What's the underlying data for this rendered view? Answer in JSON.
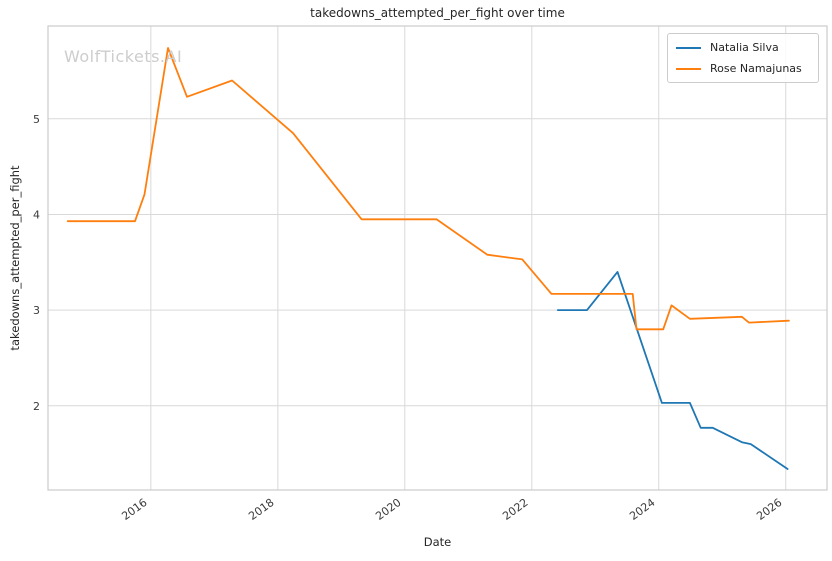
{
  "watermark": "WolfTickets.AI",
  "chart_data": {
    "type": "line",
    "title": "takedowns_attempted_per_fight over time",
    "xlabel": "Date",
    "ylabel": "takedowns_attempted_per_fight",
    "x_ticks": [
      2016,
      2018,
      2020,
      2022,
      2024,
      2026
    ],
    "y_ticks": [
      2,
      3,
      4,
      5
    ],
    "xlim": [
      2014.38,
      2026.65
    ],
    "ylim": [
      1.12,
      5.97
    ],
    "grid": true,
    "grid_color": "#d9d9d9",
    "spine_color": "#cccccc",
    "legend_position": "upper right",
    "series": [
      {
        "name": "Natalia Silva",
        "color": "#1f77b4",
        "x": [
          2022.41,
          2022.87,
          2023.35,
          2024.05,
          2024.49,
          2024.66,
          2024.85,
          2025.31,
          2025.45,
          2026.03
        ],
        "y": [
          3.0,
          3.0,
          3.4,
          2.03,
          2.03,
          1.77,
          1.77,
          1.62,
          1.6,
          1.34
        ]
      },
      {
        "name": "Rose Namajunas",
        "color": "#ff7f0e",
        "x": [
          2014.69,
          2015.75,
          2015.9,
          2016.27,
          2016.57,
          2017.28,
          2018.24,
          2019.32,
          2020.5,
          2021.3,
          2021.85,
          2022.31,
          2023.59,
          2023.65,
          2024.07,
          2024.2,
          2024.49,
          2025.31,
          2025.42,
          2026.05
        ],
        "y": [
          3.93,
          3.93,
          4.21,
          5.74,
          5.23,
          5.4,
          4.85,
          3.95,
          3.95,
          3.58,
          3.53,
          3.17,
          3.17,
          2.8,
          2.8,
          3.05,
          2.91,
          2.93,
          2.87,
          2.89
        ]
      }
    ]
  }
}
